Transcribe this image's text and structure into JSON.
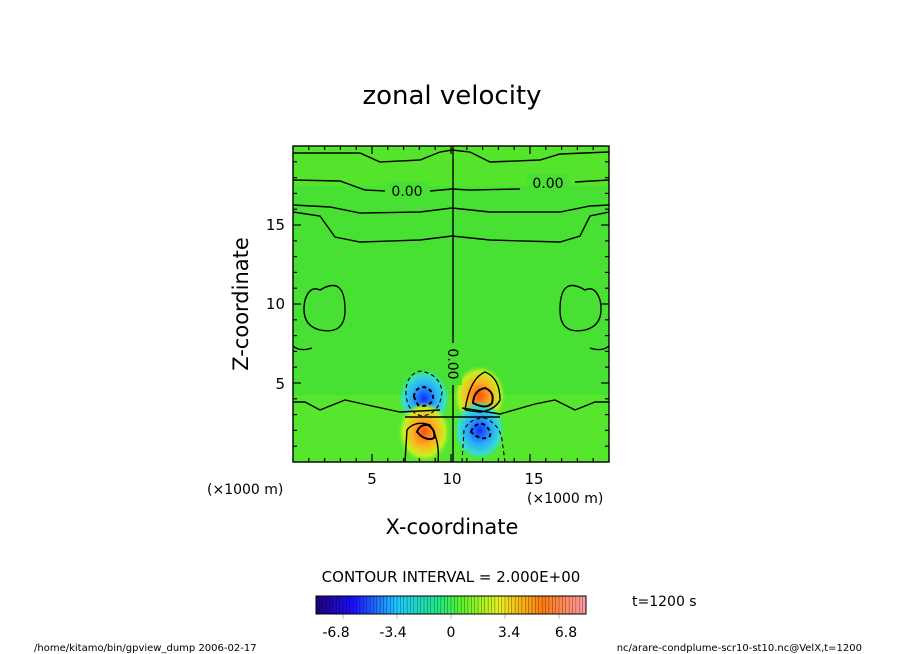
{
  "chart_data": {
    "type": "heatmap",
    "title": "zonal velocity",
    "xlabel": "X-coordinate",
    "ylabel": "Z-coordinate",
    "x_unit_note": "(×1000 m)",
    "y_unit_note": "(×1000 m)",
    "xlim": [
      0,
      20
    ],
    "ylim": [
      0,
      20
    ],
    "x_ticks": [
      5,
      10,
      15
    ],
    "y_ticks": [
      5,
      10,
      15
    ],
    "contour_labels": [
      "0.00",
      "0.00",
      "0.00"
    ],
    "contour_interval": "CONTOUR INTERVAL = 2.000E+00",
    "time_label": "t=1200 s",
    "colorbar": {
      "range": [
        -8.5,
        8.5
      ],
      "tick_values": [
        -6.8,
        -3.4,
        0,
        3.4,
        6.8
      ],
      "tick_labels": [
        "-6.8",
        "-3.4",
        "0",
        "3.4",
        "6.8"
      ]
    },
    "features": [
      {
        "x": 8.3,
        "z": 4.0,
        "value": -5.5
      },
      {
        "x": 8.3,
        "z": 1.9,
        "value": 5.8
      },
      {
        "x": 11.8,
        "z": 4.2,
        "value": 6.6
      },
      {
        "x": 11.8,
        "z": 2.0,
        "value": -5.8
      }
    ]
  },
  "footer": {
    "left": "/home/kitamo/bin/gpview_dump  2006-02-17",
    "right": "nc/arare-condplume-scr10-st10.nc@VelX,t=1200"
  }
}
